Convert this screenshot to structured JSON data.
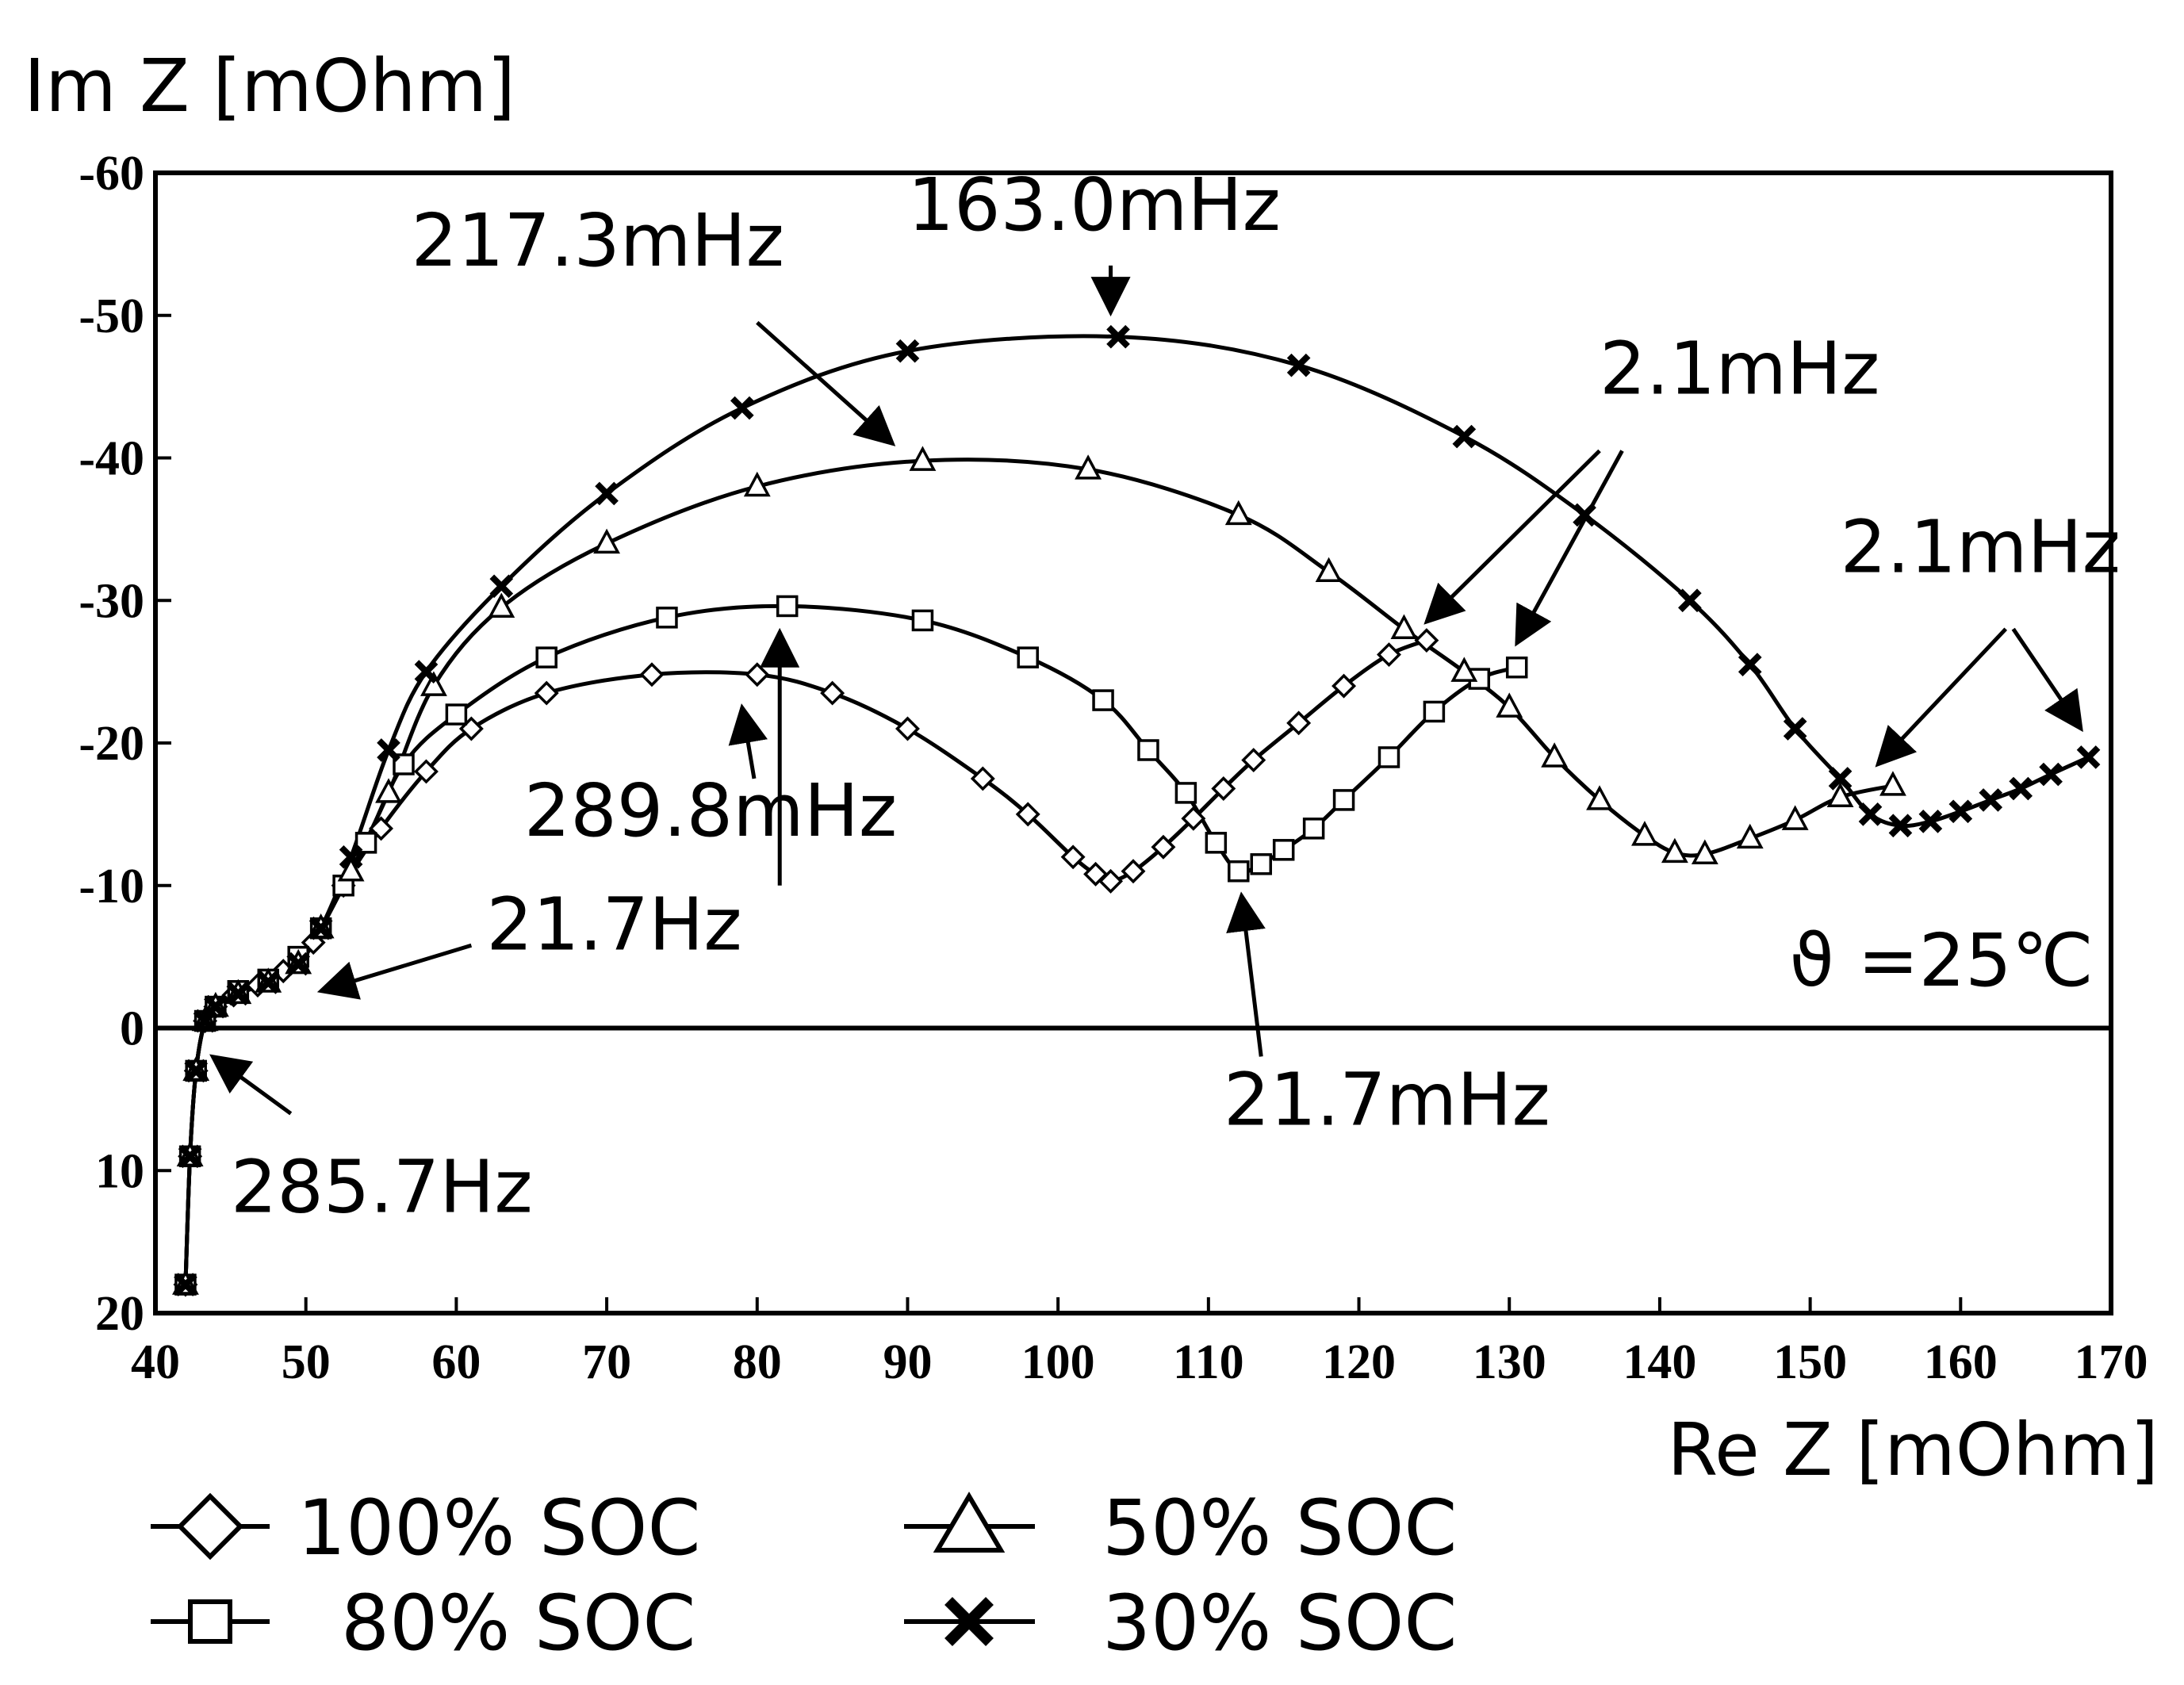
{
  "chart_data": {
    "type": "line",
    "title": "",
    "xlabel": "Re Z [mOhm]",
    "ylabel": "Im Z [mOhm]",
    "xlim": [
      40,
      170
    ],
    "ylim": [
      20,
      -60
    ],
    "x_ticks": [
      40,
      50,
      60,
      70,
      80,
      90,
      100,
      110,
      120,
      130,
      140,
      150,
      160,
      170
    ],
    "x_tick_labels": [
      "40",
      "50",
      "60",
      "70",
      "80",
      "90",
      "100",
      "110",
      "120",
      "130",
      "140",
      "150",
      "160",
      "170"
    ],
    "y_ticks": [
      -60,
      -50,
      -40,
      -30,
      -20,
      -10,
      0,
      10,
      20
    ],
    "y_tick_labels": [
      "-60",
      "-50",
      "-40",
      "-30",
      "-20",
      "-10",
      "0",
      "10",
      "20"
    ],
    "grid": false,
    "legend_position": "bottom-left",
    "temperature_label": "ϑ =25℃",
    "series": [
      {
        "name": "100% SOC",
        "marker": "diamond",
        "x": [
          42.0,
          42.3,
          42.7,
          43.3,
          44.0,
          45.2,
          46.8,
          48.5,
          50.5,
          52.5,
          55,
          58,
          61,
          66,
          73,
          80,
          85,
          90,
          95,
          98,
          101,
          102.5,
          103.5,
          105,
          107,
          109,
          111,
          113,
          116,
          119,
          122,
          124.5
        ],
        "y": [
          18,
          9,
          3,
          -0.5,
          -1.5,
          -2.3,
          -3,
          -4,
          -6,
          -10,
          -14,
          -18,
          -21,
          -23.5,
          -24.8,
          -24.8,
          -23.5,
          -21,
          -17.5,
          -15,
          -12,
          -10.8,
          -10.3,
          -11,
          -12.7,
          -14.7,
          -16.8,
          -18.8,
          -21.4,
          -24,
          -26.2,
          -27.2
        ]
      },
      {
        "name": "80% SOC",
        "marker": "square",
        "x": [
          42.0,
          42.3,
          42.7,
          43.3,
          44.0,
          45.5,
          47.5,
          49.5,
          51,
          52.5,
          54,
          56.5,
          60,
          66,
          74,
          82,
          91,
          98,
          103,
          106,
          108.5,
          110.5,
          112,
          113.5,
          115,
          117,
          119,
          122,
          125,
          128,
          130.5
        ],
        "y": [
          18,
          9,
          3,
          -0.5,
          -1.5,
          -2.6,
          -3.4,
          -5,
          -7,
          -10,
          -13,
          -18.5,
          -22,
          -26,
          -28.8,
          -29.6,
          -28.6,
          -26,
          -23,
          -19.5,
          -16.5,
          -13,
          -11,
          -11.5,
          -12.5,
          -14,
          -16,
          -19,
          -22.2,
          -24.5,
          -25.3
        ]
      },
      {
        "name": "50% SOC",
        "marker": "triangle",
        "x": [
          42.0,
          42.3,
          42.7,
          43.3,
          44.0,
          45.5,
          47.5,
          49.5,
          51,
          53,
          55.5,
          58.5,
          63,
          70,
          80,
          91,
          102,
          112,
          118,
          123,
          127,
          130,
          133,
          136,
          139,
          141,
          143,
          146,
          149,
          152,
          155.5
        ],
        "y": [
          18,
          9,
          3,
          -0.5,
          -1.5,
          -2.4,
          -3.2,
          -4.5,
          -7,
          -11,
          -16.5,
          -24,
          -29.5,
          -34,
          -38,
          -39.8,
          -39.2,
          -36,
          -32,
          -28,
          -25,
          -22.5,
          -19,
          -16,
          -13.5,
          -12.3,
          -12.2,
          -13.3,
          -14.6,
          -16.2,
          -17
        ]
      },
      {
        "name": "30% SOC",
        "marker": "x",
        "x": [
          42.0,
          42.3,
          42.7,
          43.3,
          44.0,
          45.5,
          47.5,
          49.5,
          51,
          53,
          55.5,
          58,
          63,
          70,
          79,
          90,
          104,
          116,
          127,
          135,
          142,
          146,
          149,
          152,
          154,
          156,
          158,
          160,
          162,
          164,
          166,
          168.5
        ],
        "y": [
          18,
          9,
          3,
          -0.5,
          -1.5,
          -2.4,
          -3.2,
          -4.5,
          -7,
          -12,
          -19.5,
          -25,
          -31,
          -37.5,
          -43.5,
          -47.5,
          -48.5,
          -46.5,
          -41.5,
          -36,
          -30,
          -25.5,
          -21,
          -17.5,
          -15,
          -14.2,
          -14.5,
          -15.2,
          -16,
          -16.8,
          -17.8,
          -19
        ]
      }
    ],
    "annotations": [
      {
        "text": "217.3mHz",
        "x": 57,
        "y": -53.5
      },
      {
        "text": "163.0mHz",
        "x": 90,
        "y": -56
      },
      {
        "text": "2.1mHz",
        "x": 136,
        "y": -44.5
      },
      {
        "text": "2.1mHz",
        "x": 152,
        "y": -32
      },
      {
        "text": "289.8mHz",
        "x": 64.5,
        "y": -13.5
      },
      {
        "text": "21.7Hz",
        "x": 62,
        "y": -5.5
      },
      {
        "text": "21.7mHz",
        "x": 111,
        "y": 6.8
      },
      {
        "text": "285.7Hz",
        "x": 45,
        "y": 12.9
      }
    ],
    "arrows": [
      {
        "from": [
          80,
          -49.5
        ],
        "to": [
          89,
          -41
        ]
      },
      {
        "from": [
          103.5,
          -53.5
        ],
        "to": [
          103.5,
          -50.2
        ]
      },
      {
        "from": [
          136,
          -40.5
        ],
        "to": [
          124.5,
          -28.5
        ]
      },
      {
        "from": [
          137.5,
          -40.5
        ],
        "to": [
          130.5,
          -27
        ]
      },
      {
        "from": [
          163,
          -28
        ],
        "to": [
          154.5,
          -18.5
        ]
      },
      {
        "from": [
          163.5,
          -28
        ],
        "to": [
          168,
          -21
        ]
      },
      {
        "from": [
          81.5,
          -10
        ],
        "to": [
          81.5,
          -27.8
        ]
      },
      {
        "from": [
          79.8,
          -17.5
        ],
        "to": [
          79,
          -22.5
        ]
      },
      {
        "from": [
          61,
          -5.8
        ],
        "to": [
          51,
          -2.6
        ]
      },
      {
        "from": [
          113.5,
          2
        ],
        "to": [
          112.2,
          -9.3
        ]
      },
      {
        "from": [
          49,
          6
        ],
        "to": [
          43.8,
          2
        ]
      }
    ]
  }
}
